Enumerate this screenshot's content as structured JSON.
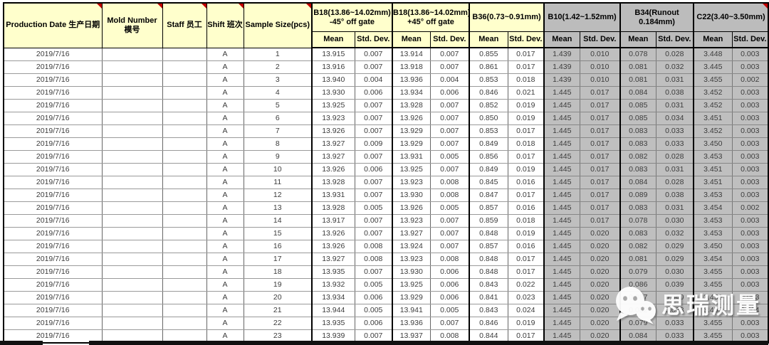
{
  "header": {
    "left_columns": [
      {
        "id": "production-date",
        "label": "Production Date 生产日期",
        "comment_marker": true
      },
      {
        "id": "mold-number",
        "label": "Mold Number 模号",
        "comment_marker": true
      },
      {
        "id": "staff",
        "label": "Staff 员工",
        "comment_marker": true
      },
      {
        "id": "shift",
        "label": "Shift 班次",
        "comment_marker": true
      },
      {
        "id": "sample-size",
        "label": "Sample Size(pcs)",
        "comment_marker": true
      }
    ],
    "groups": [
      {
        "id": "b18-minus45",
        "label": "B18(13.86~14.02mm)\n-45° off gate",
        "theme": "yellow",
        "comment_marker": false
      },
      {
        "id": "b18-plus45",
        "label": "B18(13.86~14.02mm)\n+45° off gate",
        "theme": "yellow",
        "comment_marker": false
      },
      {
        "id": "b36",
        "label": "B36(0.73~0.91mm)",
        "theme": "yellow",
        "comment_marker": false
      },
      {
        "id": "b10",
        "label": "B10(1.42~1.52mm)",
        "theme": "gray",
        "comment_marker": false
      },
      {
        "id": "b34",
        "label": "B34(Runout\n0.184mm)",
        "theme": "gray",
        "comment_marker": false
      },
      {
        "id": "c22",
        "label": "C22(3.40~3.50mm)",
        "theme": "gray",
        "comment_marker": true
      }
    ],
    "stat_labels": [
      "Mean",
      "Std. Dev."
    ]
  },
  "rows": [
    {
      "date": "2019/7/16",
      "mold": "",
      "staff": "",
      "shift": "A",
      "sample": "1",
      "values": [
        "13.915",
        "0.007",
        "13.914",
        "0.007",
        "0.855",
        "0.017",
        "1.439",
        "0.010",
        "0.078",
        "0.028",
        "3.448",
        "0.003"
      ]
    },
    {
      "date": "2019/7/16",
      "mold": "",
      "staff": "",
      "shift": "A",
      "sample": "2",
      "values": [
        "13.916",
        "0.007",
        "13.918",
        "0.007",
        "0.861",
        "0.017",
        "1.439",
        "0.010",
        "0.081",
        "0.032",
        "3.445",
        "0.003"
      ]
    },
    {
      "date": "2019/7/16",
      "mold": "",
      "staff": "",
      "shift": "A",
      "sample": "3",
      "values": [
        "13.940",
        "0.004",
        "13.936",
        "0.004",
        "0.853",
        "0.018",
        "1.439",
        "0.010",
        "0.081",
        "0.031",
        "3.455",
        "0.002"
      ]
    },
    {
      "date": "2019/7/16",
      "mold": "",
      "staff": "",
      "shift": "A",
      "sample": "4",
      "values": [
        "13.930",
        "0.006",
        "13.934",
        "0.006",
        "0.846",
        "0.021",
        "1.445",
        "0.017",
        "0.084",
        "0.038",
        "3.452",
        "0.003"
      ]
    },
    {
      "date": "2019/7/16",
      "mold": "",
      "staff": "",
      "shift": "A",
      "sample": "5",
      "values": [
        "13.925",
        "0.007",
        "13.928",
        "0.007",
        "0.852",
        "0.019",
        "1.445",
        "0.017",
        "0.085",
        "0.031",
        "3.452",
        "0.003"
      ]
    },
    {
      "date": "2019/7/16",
      "mold": "",
      "staff": "",
      "shift": "A",
      "sample": "6",
      "values": [
        "13.923",
        "0.007",
        "13.926",
        "0.007",
        "0.850",
        "0.019",
        "1.445",
        "0.017",
        "0.085",
        "0.034",
        "3.451",
        "0.003"
      ]
    },
    {
      "date": "2019/7/16",
      "mold": "",
      "staff": "",
      "shift": "A",
      "sample": "7",
      "values": [
        "13.926",
        "0.007",
        "13.929",
        "0.007",
        "0.853",
        "0.017",
        "1.445",
        "0.017",
        "0.083",
        "0.033",
        "3.452",
        "0.003"
      ]
    },
    {
      "date": "2019/7/16",
      "mold": "",
      "staff": "",
      "shift": "A",
      "sample": "8",
      "values": [
        "13.927",
        "0.009",
        "13.929",
        "0.007",
        "0.849",
        "0.018",
        "1.445",
        "0.017",
        "0.083",
        "0.033",
        "3.450",
        "0.003"
      ]
    },
    {
      "date": "2019/7/16",
      "mold": "",
      "staff": "",
      "shift": "A",
      "sample": "9",
      "values": [
        "13.927",
        "0.007",
        "13.931",
        "0.005",
        "0.856",
        "0.017",
        "1.445",
        "0.017",
        "0.082",
        "0.028",
        "3.453",
        "0.003"
      ]
    },
    {
      "date": "2019/7/16",
      "mold": "",
      "staff": "",
      "shift": "A",
      "sample": "10",
      "values": [
        "13.926",
        "0.006",
        "13.925",
        "0.007",
        "0.849",
        "0.019",
        "1.445",
        "0.017",
        "0.083",
        "0.031",
        "3.451",
        "0.003"
      ]
    },
    {
      "date": "2019/7/16",
      "mold": "",
      "staff": "",
      "shift": "A",
      "sample": "11",
      "values": [
        "13.928",
        "0.007",
        "13.923",
        "0.008",
        "0.845",
        "0.016",
        "1.445",
        "0.017",
        "0.084",
        "0.028",
        "3.451",
        "0.003"
      ]
    },
    {
      "date": "2019/7/16",
      "mold": "",
      "staff": "",
      "shift": "A",
      "sample": "12",
      "values": [
        "13.931",
        "0.007",
        "13.930",
        "0.008",
        "0.847",
        "0.017",
        "1.445",
        "0.017",
        "0.089",
        "0.038",
        "3.453",
        "0.003"
      ]
    },
    {
      "date": "2019/7/16",
      "mold": "",
      "staff": "",
      "shift": "A",
      "sample": "13",
      "values": [
        "13.928",
        "0.005",
        "13.926",
        "0.005",
        "0.857",
        "0.016",
        "1.445",
        "0.017",
        "0.083",
        "0.031",
        "3.454",
        "0.002"
      ]
    },
    {
      "date": "2019/7/16",
      "mold": "",
      "staff": "",
      "shift": "A",
      "sample": "14",
      "values": [
        "13.917",
        "0.007",
        "13.923",
        "0.007",
        "0.859",
        "0.018",
        "1.445",
        "0.017",
        "0.078",
        "0.030",
        "3.453",
        "0.003"
      ]
    },
    {
      "date": "2019/7/16",
      "mold": "",
      "staff": "",
      "shift": "A",
      "sample": "15",
      "values": [
        "13.926",
        "0.007",
        "13.927",
        "0.007",
        "0.848",
        "0.019",
        "1.445",
        "0.020",
        "0.083",
        "0.032",
        "3.453",
        "0.003"
      ]
    },
    {
      "date": "2019/7/16",
      "mold": "",
      "staff": "",
      "shift": "A",
      "sample": "16",
      "values": [
        "13.926",
        "0.008",
        "13.924",
        "0.007",
        "0.857",
        "0.016",
        "1.445",
        "0.020",
        "0.082",
        "0.029",
        "3.450",
        "0.003"
      ]
    },
    {
      "date": "2019/7/16",
      "mold": "",
      "staff": "",
      "shift": "A",
      "sample": "17",
      "values": [
        "13.927",
        "0.008",
        "13.923",
        "0.008",
        "0.848",
        "0.017",
        "1.445",
        "0.020",
        "0.081",
        "0.029",
        "3.454",
        "0.003"
      ]
    },
    {
      "date": "2019/7/16",
      "mold": "",
      "staff": "",
      "shift": "A",
      "sample": "18",
      "values": [
        "13.935",
        "0.007",
        "13.930",
        "0.006",
        "0.848",
        "0.017",
        "1.445",
        "0.020",
        "0.079",
        "0.030",
        "3.455",
        "0.003"
      ]
    },
    {
      "date": "2019/7/16",
      "mold": "",
      "staff": "",
      "shift": "A",
      "sample": "19",
      "values": [
        "13.932",
        "0.005",
        "13.925",
        "0.006",
        "0.843",
        "0.022",
        "1.445",
        "0.020",
        "0.086",
        "0.039",
        "3.455",
        "0.003"
      ]
    },
    {
      "date": "2019/7/16",
      "mold": "",
      "staff": "",
      "shift": "A",
      "sample": "20",
      "values": [
        "13.934",
        "0.006",
        "13.929",
        "0.006",
        "0.841",
        "0.023",
        "1.445",
        "0.020",
        "0.087",
        "0.040",
        "3.456",
        "0.003"
      ]
    },
    {
      "date": "2019/7/16",
      "mold": "",
      "staff": "",
      "shift": "A",
      "sample": "21",
      "values": [
        "13.944",
        "0.005",
        "13.941",
        "0.005",
        "0.843",
        "0.024",
        "1.445",
        "0.020",
        "0.082",
        "0.033",
        "3.455",
        "0.004"
      ]
    },
    {
      "date": "2019/7/16",
      "mold": "",
      "staff": "",
      "shift": "A",
      "sample": "22",
      "values": [
        "13.935",
        "0.006",
        "13.936",
        "0.007",
        "0.846",
        "0.019",
        "1.445",
        "0.020",
        "0.079",
        "0.033",
        "3.455",
        "0.003"
      ]
    },
    {
      "date": "2019/7/16",
      "mold": "",
      "staff": "",
      "shift": "A",
      "sample": "23",
      "values": [
        "13.939",
        "0.007",
        "13.937",
        "0.008",
        "0.844",
        "0.017",
        "1.445",
        "0.020",
        "0.084",
        "0.033",
        "3.455",
        "0.003"
      ]
    }
  ],
  "watermark": {
    "text": "思瑞测量",
    "icon": "wechat-icon"
  },
  "colors": {
    "header_yellow": "#FFFFCC",
    "group_gray": "#BFBFBF",
    "comment_marker_red": "#C00000",
    "grid_line": "#9A9A9A",
    "border_black": "#000000"
  }
}
